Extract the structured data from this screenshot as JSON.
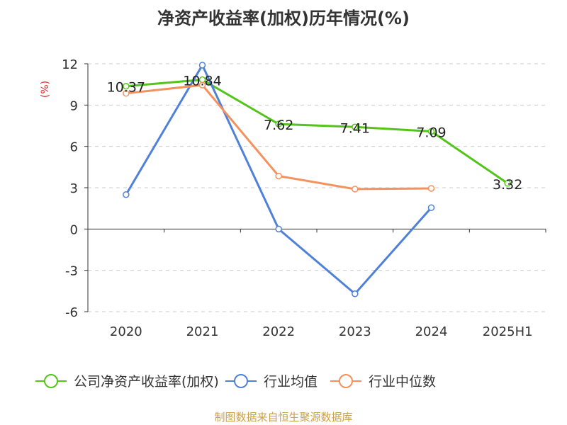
{
  "chart_data": {
    "type": "line",
    "title": "净资产收益率(加权)历年情况(%)",
    "ylabel": "(%)",
    "categories": [
      "2020",
      "2021",
      "2022",
      "2023",
      "2024",
      "2025H1"
    ],
    "ylim": [
      -6,
      12
    ],
    "yticks": [
      -6,
      -3,
      0,
      3,
      6,
      9,
      12
    ],
    "grid": true,
    "legend_position": "bottom",
    "series": [
      {
        "name": "公司净资产收益率(加权)",
        "color": "#52c41a",
        "values": [
          10.37,
          10.84,
          7.62,
          7.41,
          7.09,
          3.32
        ],
        "labels": [
          "10.37",
          "10.84",
          "7.62",
          "7.41",
          "7.09",
          "3.32"
        ]
      },
      {
        "name": "行业均值",
        "color": "#4f81d9",
        "values": [
          2.5,
          11.9,
          0.0,
          -4.7,
          1.55,
          null
        ]
      },
      {
        "name": "行业中位数",
        "color": "#f4915c",
        "values": [
          9.85,
          10.45,
          3.85,
          2.9,
          2.95,
          null
        ]
      }
    ]
  },
  "source": "制图数据来自恒生聚源数据库"
}
